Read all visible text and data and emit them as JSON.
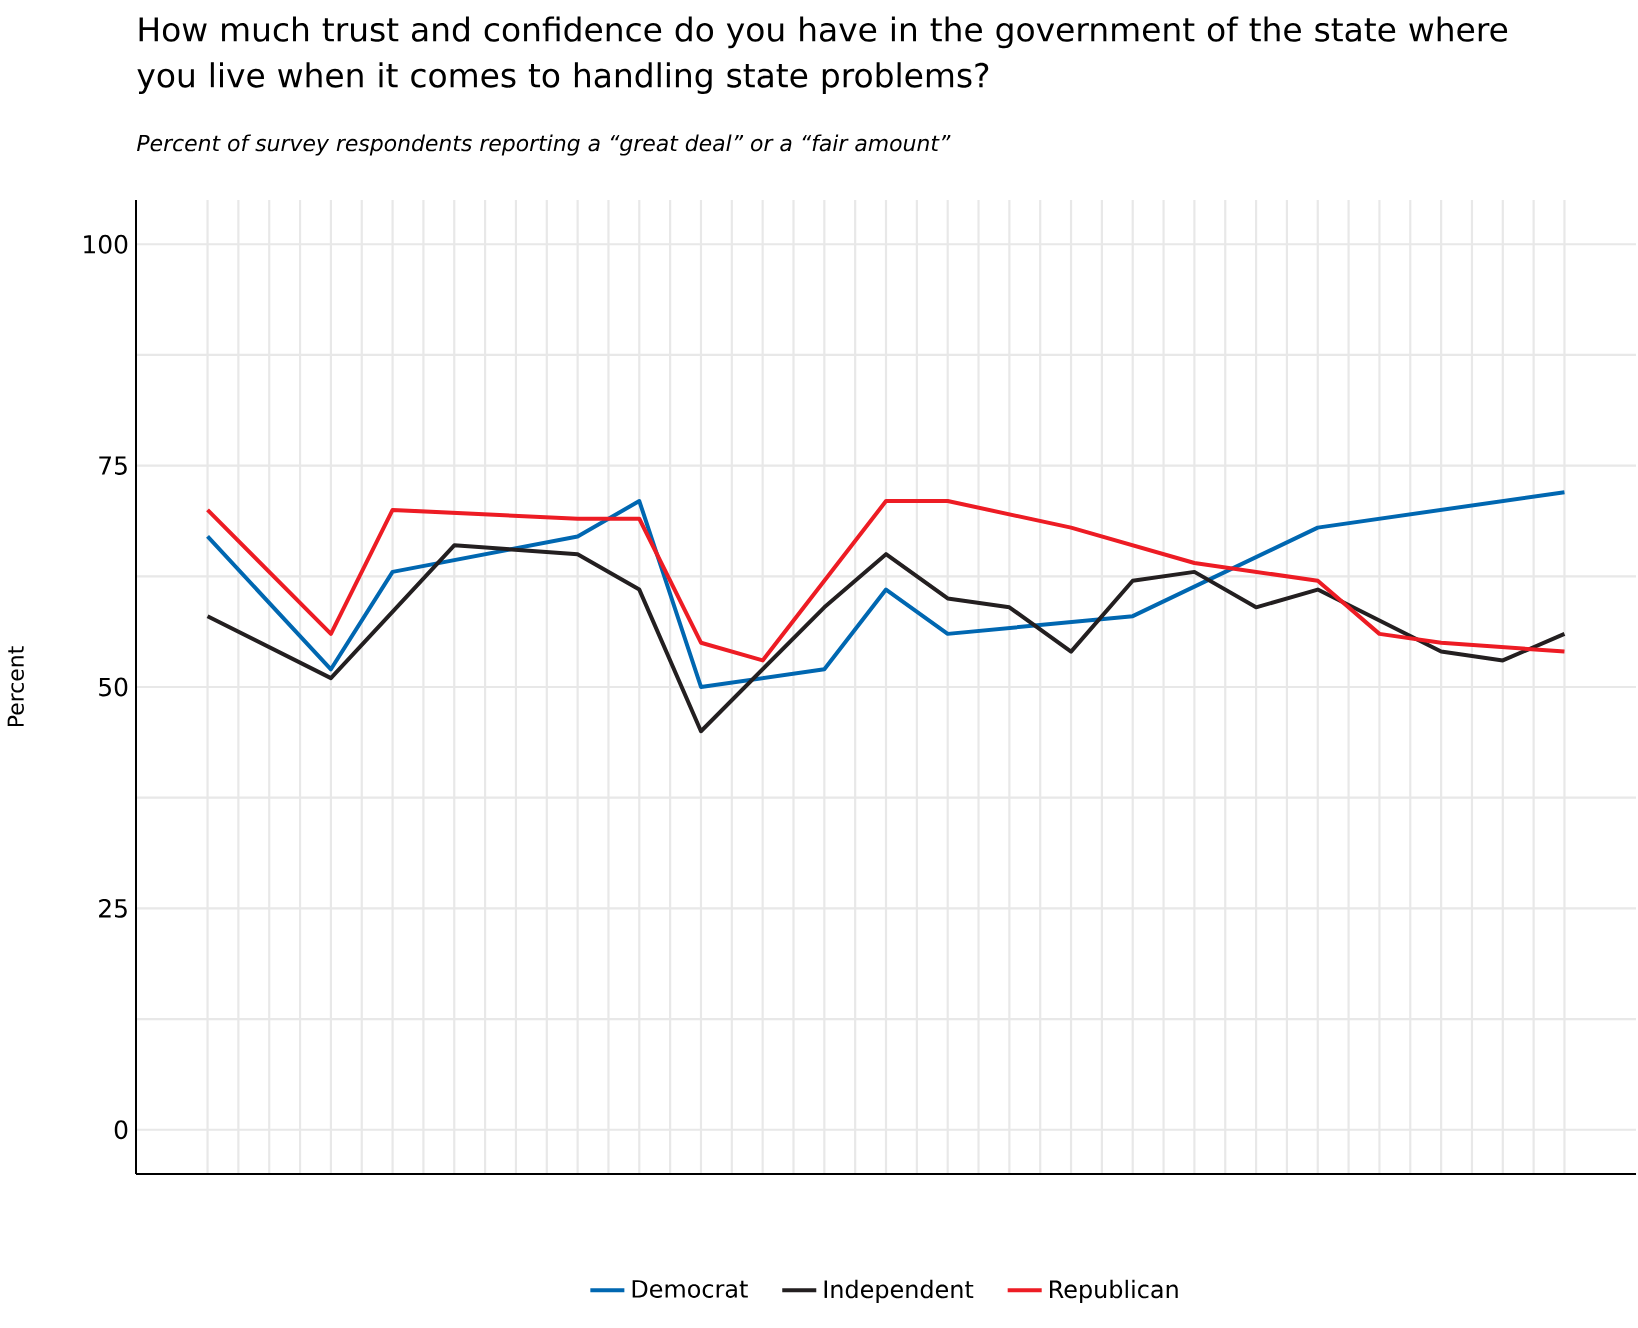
{
  "chart_data": {
    "type": "line",
    "title": "How much trust and confidence do you have in the government of the state where you live when it comes to handling state problems?",
    "subtitle": "Percent of survey respondents reporting a “great deal” or a “fair amount”",
    "ylabel": "Percent",
    "categories": [
      null,
      null,
      null,
      null,
      null,
      null,
      null,
      null,
      null,
      null,
      null,
      null,
      null,
      null,
      null,
      null,
      null,
      null,
      null,
      null,
      null,
      null,
      null
    ],
    "series": [
      {
        "name": "Democrat",
        "color": "#0067b1",
        "values": [
          67,
          null,
          52,
          63,
          null,
          null,
          67,
          71,
          50,
          null,
          52,
          61,
          56,
          null,
          null,
          58,
          null,
          null,
          68,
          null,
          null,
          null,
          72
        ]
      },
      {
        "name": "Independent",
        "color": "#231f20",
        "values": [
          58,
          null,
          51,
          null,
          66,
          null,
          65,
          61,
          45,
          null,
          59,
          65,
          60,
          59,
          54,
          62,
          63,
          59,
          61,
          null,
          54,
          53,
          56
        ]
      },
      {
        "name": "Republican",
        "color": "#ed1c24",
        "values": [
          70,
          null,
          56,
          70,
          null,
          null,
          69,
          69,
          55,
          53,
          null,
          71,
          71,
          null,
          68,
          null,
          64,
          null,
          62,
          56,
          55,
          null,
          54
        ]
      }
    ],
    "ylim": [
      -5,
      105
    ],
    "yticks": [
      0,
      25,
      50,
      75,
      100
    ],
    "grid": true,
    "legend": "bottom",
    "tick_labels": "y",
    "marker": "none",
    "line_style": "solid"
  }
}
